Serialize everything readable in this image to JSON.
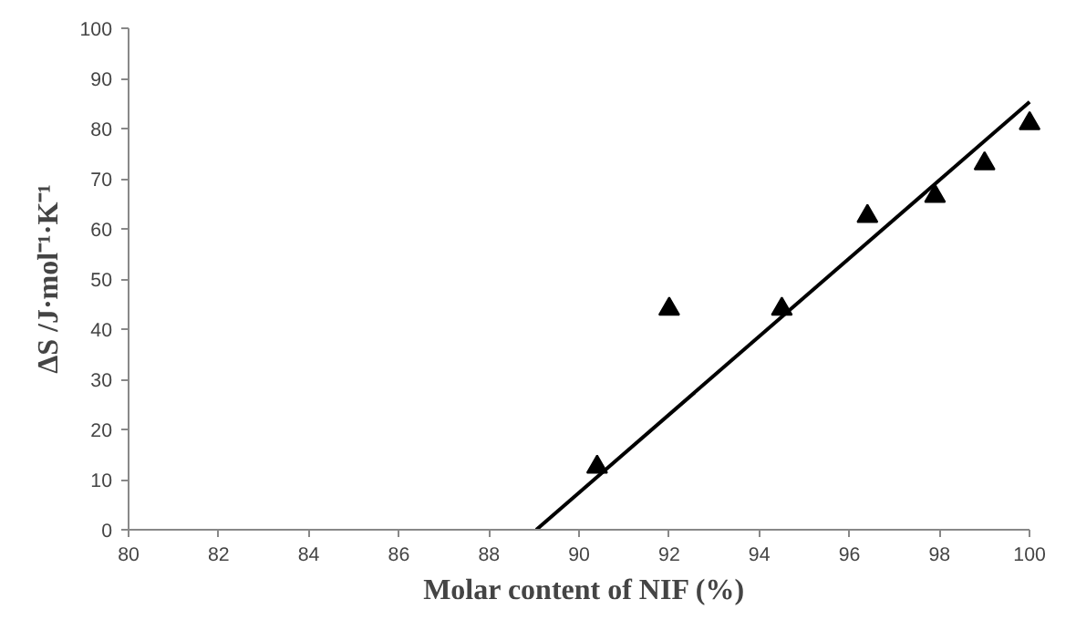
{
  "chart_data": {
    "type": "scatter",
    "xlabel": "Molar content of NIF (%)",
    "ylabel": "ΔS /J·mol⁻¹·K⁻¹",
    "grid": false,
    "xlim": [
      80,
      100
    ],
    "xticks": [
      80,
      82,
      84,
      86,
      88,
      90,
      92,
      94,
      96,
      98,
      100
    ],
    "ylim": [
      0,
      100
    ],
    "yticks": [
      0,
      10,
      20,
      30,
      40,
      50,
      60,
      70,
      80,
      90,
      100
    ],
    "series": [
      {
        "color": "#000000",
        "marker": "triangle",
        "x": [
          90.4,
          92.0,
          94.5,
          96.4,
          97.9,
          99.0,
          100.0
        ],
        "values": [
          12.5,
          44,
          44,
          62.5,
          66.5,
          73,
          81
        ]
      },
      {
        "type": "line",
        "marker": "none",
        "color": "#000000",
        "x": [
          89.05,
          100
        ],
        "values": [
          0,
          85.3
        ]
      }
    ]
  }
}
